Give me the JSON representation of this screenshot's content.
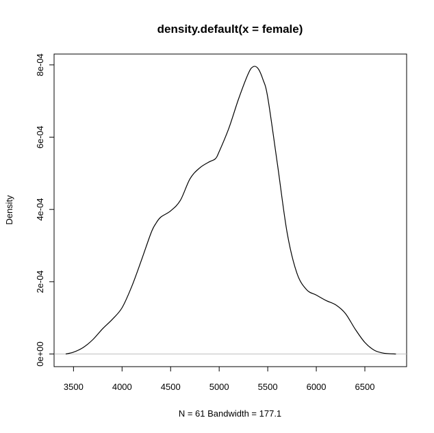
{
  "chart_data": {
    "type": "line",
    "title": "density.default(x = female)",
    "xlabel": "N = 61   Bandwidth = 177.1",
    "ylabel": "Density",
    "xlim": [
      3300,
      6930
    ],
    "ylim": [
      -3.5e-05,
      0.00083
    ],
    "grid": false,
    "x_ticks": [
      3500,
      4000,
      4500,
      5000,
      5500,
      6000,
      6500
    ],
    "x_tick_labels": [
      "3500",
      "4000",
      "4500",
      "5000",
      "5500",
      "6000",
      "6500"
    ],
    "y_ticks": [
      0,
      0.0002,
      0.0004,
      0.0006,
      0.0008
    ],
    "y_tick_labels": [
      "0e+00",
      "2e-04",
      "4e-04",
      "6e-04",
      "8e-04"
    ],
    "baseline": 0,
    "baseline_color": "#c0c0c0",
    "line_color": "#000000",
    "series": [
      {
        "x": [
          3420,
          3500,
          3600,
          3700,
          3800,
          3900,
          4000,
          4100,
          4200,
          4300,
          4350,
          4400,
          4500,
          4600,
          4700,
          4800,
          4900,
          4960,
          5000,
          5100,
          5200,
          5300,
          5350,
          5400,
          5450,
          5500,
          5600,
          5700,
          5800,
          5900,
          6000,
          6100,
          6200,
          6300,
          6400,
          6500,
          6600,
          6700,
          6820
        ],
        "values": [
          0.0,
          5e-06,
          1.8e-05,
          4e-05,
          7e-05,
          9.6e-05,
          0.000128,
          0.000187,
          0.00026,
          0.000336,
          0.000362,
          0.000379,
          0.000396,
          0.000425,
          0.000485,
          0.000515,
          0.000532,
          0.00054,
          0.00056,
          0.000625,
          0.000706,
          0.000776,
          0.000795,
          0.00079,
          0.00076,
          0.00071,
          0.000525,
          0.000335,
          0.000224,
          0.000178,
          0.000163,
          0.000148,
          0.000136,
          0.000112,
          6.9e-05,
          3.2e-05,
          1e-05,
          2e-06,
          0.0
        ]
      }
    ]
  }
}
